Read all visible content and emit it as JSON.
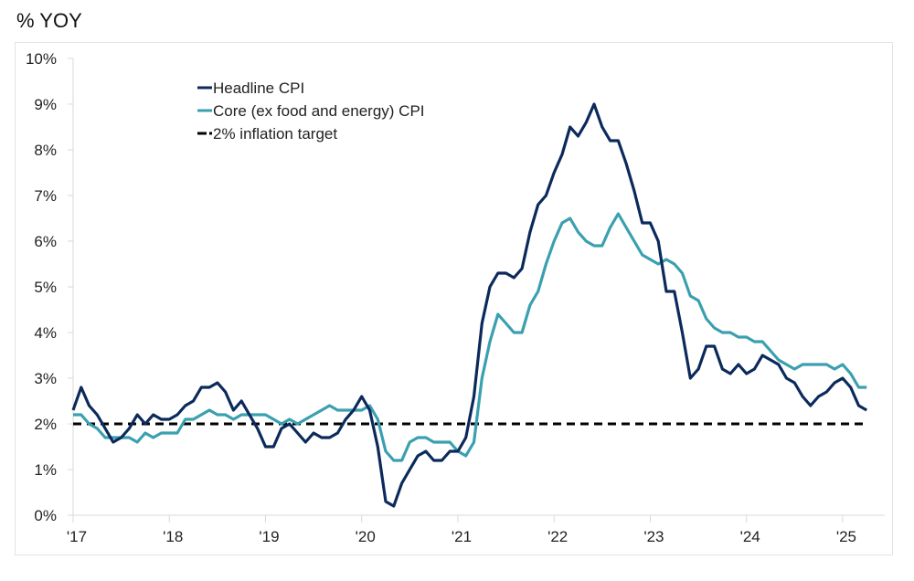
{
  "chart_data": {
    "type": "line",
    "title": "% YOY",
    "xlabel": "",
    "ylabel": "",
    "ylim": [
      0,
      10
    ],
    "yticks": [
      "0%",
      "1%",
      "2%",
      "3%",
      "4%",
      "5%",
      "6%",
      "7%",
      "8%",
      "9%",
      "10%"
    ],
    "xticks": [
      "'17",
      "'18",
      "'19",
      "'20",
      "'21",
      "'22",
      "'23",
      "'24",
      "'25"
    ],
    "x_start": "2017-01",
    "x_frequency": "monthly",
    "grid": false,
    "legend_placement": "top-center",
    "series": [
      {
        "name": "Headline CPI",
        "color": "#0b2a5b",
        "style": "solid",
        "values": [
          2.3,
          2.8,
          2.4,
          2.2,
          1.9,
          1.6,
          1.7,
          1.9,
          2.2,
          2.0,
          2.2,
          2.1,
          2.1,
          2.2,
          2.4,
          2.5,
          2.8,
          2.8,
          2.9,
          2.7,
          2.3,
          2.5,
          2.2,
          1.9,
          1.5,
          1.5,
          1.9,
          2.0,
          1.8,
          1.6,
          1.8,
          1.7,
          1.7,
          1.8,
          2.1,
          2.3,
          2.6,
          2.3,
          1.5,
          0.3,
          0.2,
          0.7,
          1.0,
          1.3,
          1.4,
          1.2,
          1.2,
          1.4,
          1.4,
          1.7,
          2.6,
          4.2,
          5.0,
          5.3,
          5.3,
          5.2,
          5.4,
          6.2,
          6.8,
          7.0,
          7.5,
          7.9,
          8.5,
          8.3,
          8.6,
          9.0,
          8.5,
          8.2,
          8.2,
          7.7,
          7.1,
          6.4,
          6.4,
          6.0,
          4.9,
          4.9,
          4.0,
          3.0,
          3.2,
          3.7,
          3.7,
          3.2,
          3.1,
          3.3,
          3.1,
          3.2,
          3.5,
          3.4,
          3.3,
          3.0,
          2.9,
          2.6,
          2.4,
          2.6,
          2.7,
          2.9,
          3.0,
          2.8,
          2.4,
          2.3
        ]
      },
      {
        "name": "Core (ex food and energy) CPI",
        "color": "#3aa0b0",
        "style": "solid",
        "values": [
          2.2,
          2.2,
          2.0,
          1.9,
          1.7,
          1.7,
          1.7,
          1.7,
          1.6,
          1.8,
          1.7,
          1.8,
          1.8,
          1.8,
          2.1,
          2.1,
          2.2,
          2.3,
          2.2,
          2.2,
          2.1,
          2.2,
          2.2,
          2.2,
          2.2,
          2.1,
          2.0,
          2.1,
          2.0,
          2.1,
          2.2,
          2.3,
          2.4,
          2.3,
          2.3,
          2.3,
          2.3,
          2.4,
          2.1,
          1.4,
          1.2,
          1.2,
          1.6,
          1.7,
          1.7,
          1.6,
          1.6,
          1.6,
          1.4,
          1.3,
          1.6,
          3.0,
          3.8,
          4.4,
          4.2,
          4.0,
          4.0,
          4.6,
          4.9,
          5.5,
          6.0,
          6.4,
          6.5,
          6.2,
          6.0,
          5.9,
          5.9,
          6.3,
          6.6,
          6.3,
          6.0,
          5.7,
          5.6,
          5.5,
          5.6,
          5.5,
          5.3,
          4.8,
          4.7,
          4.3,
          4.1,
          4.0,
          4.0,
          3.9,
          3.9,
          3.8,
          3.8,
          3.6,
          3.4,
          3.3,
          3.2,
          3.3,
          3.3,
          3.3,
          3.3,
          3.2,
          3.3,
          3.1,
          2.8,
          2.8
        ]
      },
      {
        "name": "2% inflation target",
        "color": "#000000",
        "style": "dashed",
        "value": 2
      }
    ]
  }
}
